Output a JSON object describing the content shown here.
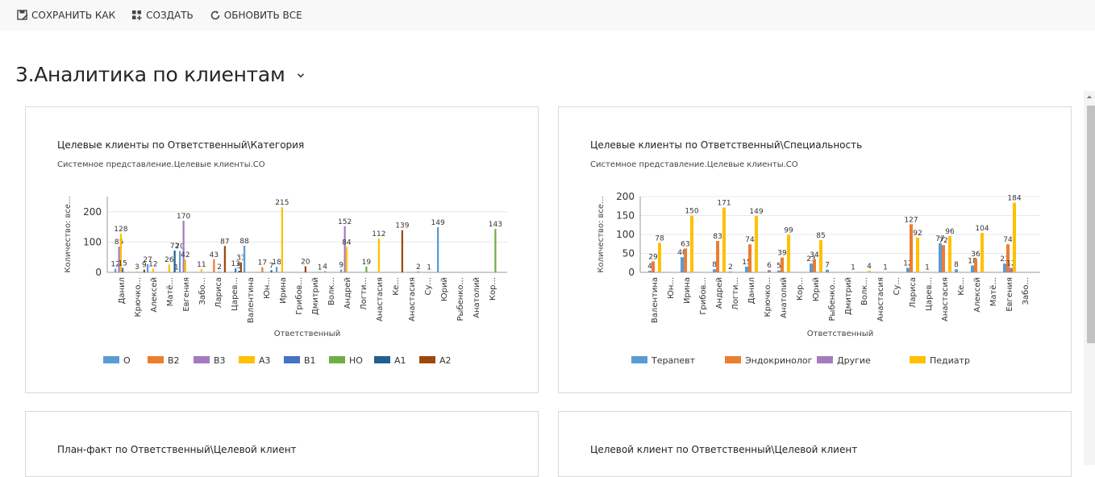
{
  "toolbar": {
    "save_as": "СОХРАНИТЬ КАК",
    "create": "СОЗДАТЬ",
    "refresh_all": "ОБНОВИТЬ ВСЕ"
  },
  "page": {
    "title": "3.Аналитика по клиентам"
  },
  "colors": {
    "O": "#5b9bd5",
    "B2": "#ed7d31",
    "B3": "#a47bbf",
    "A3": "#ffc000",
    "B1": "#4472c4",
    "HO": "#70ad47",
    "A1": "#255e91",
    "A2": "#9e480e"
  },
  "panels": {
    "p1": {
      "title": "Целевые клиенты по Ответственный\\Категория",
      "subtitle": "Системное представление.Целевые клиенты.CO"
    },
    "p2": {
      "title": "Целевые клиенты по Ответственный\\Специальность",
      "subtitle": "Системное представление.Целевые клиенты.CO"
    },
    "p3": {
      "title": "План-факт по Ответственный\\Целевой клиент"
    },
    "p4": {
      "title": "Целевой клиент по Ответственный\\Целевой клиент"
    }
  },
  "chart_data": [
    {
      "type": "bar",
      "title": "Целевые клиенты по Ответственный\\Категория",
      "subtitle": "Системное представление.Целевые клиенты.CO",
      "xlabel": "Ответственный",
      "ylabel": "Количество: все...",
      "ylim": [
        0,
        250
      ],
      "yticks": [
        0,
        100,
        200
      ],
      "categories": [
        "Данил",
        "Крючко...",
        "Алексей",
        "Матё...",
        "Евгения",
        "Забо...",
        "Лариса",
        "Царев...",
        "Валентина",
        "Юн...",
        "Ирина",
        "Грибов...",
        "Дмитрий",
        "Волк...",
        "Андрей",
        "Логти...",
        "Анастасия",
        "Ке...",
        "Анастасия",
        "Су...",
        "Юрий",
        "Рыбенко...",
        "Анатолий",
        "Кор..."
      ],
      "legend": "bottom",
      "series": [
        {
          "name": "O",
          "values": [
            12,
            0,
            27,
            0,
            70,
            0,
            0,
            0,
            88,
            0,
            18,
            0,
            0,
            4,
            9,
            0,
            0,
            0,
            0,
            0,
            149,
            0,
            0,
            0
          ]
        },
        {
          "name": "B2",
          "values": [
            0,
            0,
            0,
            0,
            0,
            0,
            43,
            0,
            0,
            17,
            0,
            0,
            0,
            0,
            0,
            0,
            0,
            0,
            0,
            0,
            0,
            0,
            0,
            0
          ]
        },
        {
          "name": "B3",
          "values": [
            85,
            0,
            0,
            0,
            170,
            0,
            0,
            0,
            0,
            0,
            0,
            0,
            0,
            0,
            152,
            0,
            0,
            0,
            0,
            0,
            0,
            0,
            0,
            0
          ]
        },
        {
          "name": "A3",
          "values": [
            128,
            3,
            12,
            26,
            42,
            11,
            0,
            0,
            0,
            0,
            215,
            0,
            0,
            0,
            84,
            0,
            112,
            0,
            0,
            0,
            0,
            0,
            0,
            0
          ]
        },
        {
          "name": "B1",
          "values": [
            15,
            0,
            0,
            0,
            0,
            0,
            2,
            13,
            0,
            0,
            0,
            0,
            0,
            0,
            0,
            0,
            0,
            0,
            0,
            1,
            0,
            0,
            0,
            0
          ]
        },
        {
          "name": "HO",
          "values": [
            0,
            0,
            0,
            0,
            0,
            0,
            0,
            0,
            0,
            0,
            0,
            0,
            0,
            0,
            0,
            19,
            0,
            0,
            0,
            0,
            0,
            0,
            0,
            143
          ]
        },
        {
          "name": "A1",
          "values": [
            0,
            0,
            0,
            72,
            0,
            0,
            0,
            5,
            0,
            7,
            0,
            0,
            1,
            0,
            0,
            0,
            0,
            0,
            0,
            0,
            0,
            0,
            0,
            0
          ]
        },
        {
          "name": "A2",
          "values": [
            0,
            9,
            0,
            1,
            0,
            0,
            87,
            33,
            0,
            0,
            0,
            20,
            0,
            0,
            0,
            0,
            0,
            139,
            2,
            0,
            0,
            0,
            0,
            0
          ]
        }
      ]
    },
    {
      "type": "bar",
      "title": "Целевые клиенты по Ответственный\\Специальность",
      "subtitle": "Системное представление.Целевые клиенты.CO",
      "xlabel": "Ответственный",
      "ylabel": "Количество: все...",
      "ylim": [
        0,
        200
      ],
      "yticks": [
        0,
        50,
        100,
        150,
        200
      ],
      "categories": [
        "Валентина",
        "Юн...",
        "Ирина",
        "Грибов...",
        "Андрей",
        "Логти...",
        "Данил",
        "Крючко...",
        "Анатолий",
        "Кор...",
        "Юрий",
        "Рыбенко...",
        "Дмитрий",
        "Волк...",
        "Анастасия",
        "Су...",
        "Лариса",
        "Царев...",
        "Анастасия",
        "Ке...",
        "Алексей",
        "Матё...",
        "Евгения",
        "Забо..."
      ],
      "legend": "bottom",
      "series": [
        {
          "name": "Терапевт",
          "values": [
            4,
            0,
            40,
            0,
            8,
            2,
            15,
            0,
            5,
            0,
            23,
            7,
            0,
            0,
            0,
            0,
            12,
            0,
            77,
            8,
            18,
            0,
            23,
            0
          ]
        },
        {
          "name": "Эндокринолог",
          "values": [
            29,
            0,
            63,
            0,
            83,
            0,
            74,
            0,
            39,
            0,
            34,
            0,
            0,
            0,
            0,
            0,
            127,
            1,
            72,
            0,
            36,
            0,
            74,
            0
          ]
        },
        {
          "name": "Другие",
          "values": [
            0,
            0,
            0,
            0,
            0,
            0,
            0,
            6,
            0,
            0,
            0,
            0,
            0,
            0,
            0,
            0,
            0,
            0,
            0,
            0,
            0,
            0,
            12,
            0
          ]
        },
        {
          "name": "Педиатр",
          "values": [
            78,
            0,
            150,
            0,
            171,
            0,
            149,
            0,
            99,
            0,
            85,
            0,
            1,
            4,
            1,
            0,
            92,
            0,
            96,
            0,
            104,
            0,
            184,
            0
          ]
        }
      ]
    }
  ]
}
